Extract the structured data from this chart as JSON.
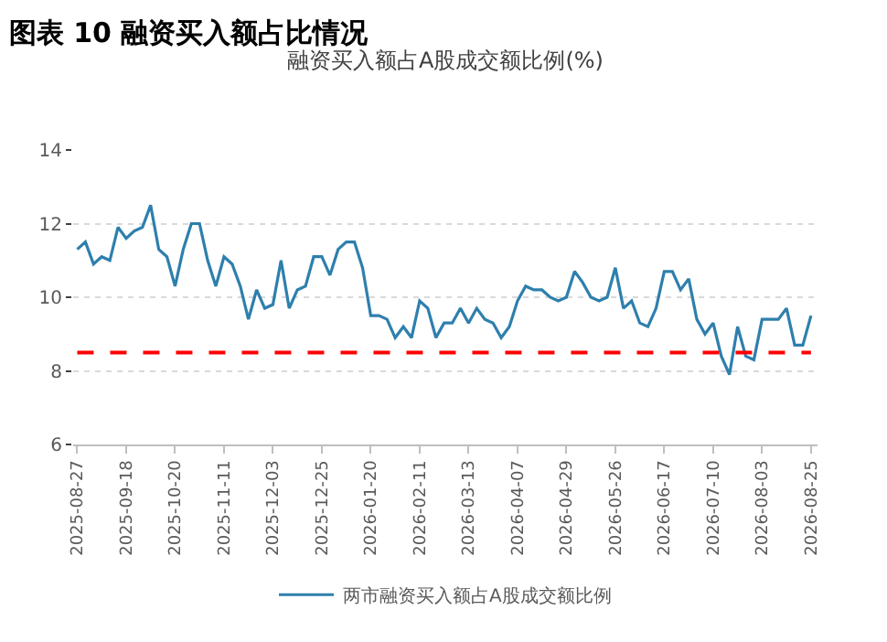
{
  "chart_data": {
    "type": "line",
    "title": "图表 10 融资买入额占比情况",
    "subtitle": "融资买入额占A股成交额比例(%)",
    "categories": [
      "2025-08-27",
      null,
      null,
      null,
      null,
      null,
      "2025-09-18",
      null,
      null,
      null,
      null,
      null,
      "2025-10-20",
      null,
      null,
      null,
      null,
      null,
      "2025-11-11",
      null,
      null,
      null,
      null,
      null,
      "2025-12-03",
      null,
      null,
      null,
      null,
      null,
      "2025-12-25",
      null,
      null,
      null,
      null,
      null,
      "2026-01-20",
      null,
      null,
      null,
      null,
      null,
      "2026-02-11",
      null,
      null,
      null,
      null,
      null,
      "2026-03-13",
      null,
      null,
      null,
      null,
      null,
      "2026-04-07",
      null,
      null,
      null,
      null,
      null,
      "2026-04-29",
      null,
      null,
      null,
      null,
      null,
      "2026-05-26",
      null,
      null,
      null,
      null,
      null,
      "2026-06-17",
      null,
      null,
      null,
      null,
      null,
      "2026-07-10",
      null,
      null,
      null,
      null,
      null,
      "2026-08-03",
      null,
      null,
      null,
      null,
      null,
      "2026-08-25"
    ],
    "series": [
      {
        "name": "两市融资买入额占A股成交额比例",
        "color": "#2e7fad",
        "values": [
          11.3,
          11.5,
          10.9,
          11.1,
          11.0,
          11.9,
          11.6,
          11.8,
          11.9,
          12.5,
          11.3,
          11.1,
          10.3,
          11.3,
          12.0,
          12.0,
          11.0,
          10.3,
          11.1,
          10.9,
          10.3,
          9.4,
          10.2,
          9.7,
          9.8,
          11.0,
          9.7,
          10.2,
          10.3,
          11.1,
          11.1,
          10.6,
          11.3,
          11.5,
          11.5,
          10.8,
          9.5,
          9.5,
          9.4,
          8.9,
          9.2,
          8.9,
          9.9,
          9.7,
          8.9,
          9.3,
          9.3,
          9.7,
          9.3,
          9.7,
          9.4,
          9.3,
          8.9,
          9.2,
          9.9,
          10.3,
          10.2,
          10.2,
          10.0,
          9.9,
          10.0,
          10.7,
          10.4,
          10.0,
          9.9,
          10.0,
          10.8,
          9.7,
          9.9,
          9.3,
          9.2,
          9.7,
          10.7,
          10.7,
          10.2,
          10.5,
          9.4,
          9.0,
          9.3,
          8.4,
          7.9,
          9.2,
          8.4,
          8.3,
          9.4,
          9.4,
          9.4,
          9.7,
          8.7,
          8.7,
          9.5
        ]
      }
    ],
    "ylim": [
      6,
      14
    ],
    "yticks": [
      6,
      8,
      10,
      12,
      14
    ],
    "grid": "y",
    "legend": "bottom",
    "marker": "none",
    "line_style": "solid",
    "ref_lines": [
      {
        "axis": "y",
        "value": 8.5,
        "color": "#ff0000",
        "line_style": "dashed"
      }
    ]
  }
}
